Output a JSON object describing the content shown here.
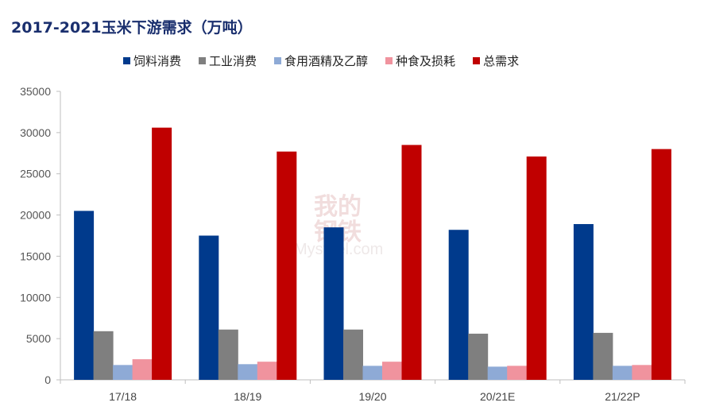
{
  "chart_data": {
    "type": "bar",
    "title": "2017-2021玉米下游需求（万吨）",
    "categories": [
      "17/18",
      "18/19",
      "19/20",
      "20/21E",
      "21/22P"
    ],
    "series": [
      {
        "name": "饲料消费",
        "color": "#003a8c",
        "values": [
          20500,
          17500,
          18500,
          18200,
          18900
        ]
      },
      {
        "name": "工业消费",
        "color": "#7f7f7f",
        "values": [
          5900,
          6100,
          6100,
          5600,
          5700
        ]
      },
      {
        "name": "食用酒精及乙醇",
        "color": "#8eaad6",
        "values": [
          1800,
          1900,
          1700,
          1600,
          1700
        ]
      },
      {
        "name": "种食及损耗",
        "color": "#f0939e",
        "values": [
          2500,
          2200,
          2200,
          1700,
          1800
        ]
      },
      {
        "name": "总需求",
        "color": "#c00000",
        "values": [
          30600,
          27700,
          28500,
          27100,
          28000
        ]
      }
    ],
    "yticks": [
      0,
      5000,
      10000,
      15000,
      20000,
      25000,
      30000,
      35000
    ],
    "ylim": [
      0,
      35000
    ],
    "legend": "top",
    "grid": false,
    "watermark": [
      "我的",
      "钢铁",
      "Mysteel.com"
    ]
  }
}
